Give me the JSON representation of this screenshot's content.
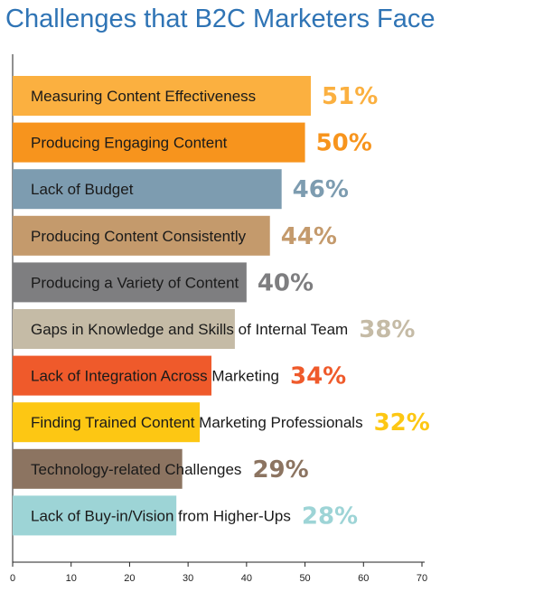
{
  "chart_data": {
    "type": "bar",
    "orientation": "horizontal",
    "title": "Challenges that B2C Marketers Face",
    "categories": [
      "Measuring Content Effectiveness",
      "Producing Engaging Content",
      "Lack of Budget",
      "Producing Content Consistently",
      "Producing a Variety of Content",
      "Gaps in Knowledge and Skills of Internal Team",
      "Lack of Integration Across Marketing",
      "Finding Trained Content Marketing Professionals",
      "Technology-related Challenges",
      "Lack of Buy-in/Vision from Higher-Ups"
    ],
    "values": [
      51,
      50,
      46,
      44,
      40,
      38,
      34,
      32,
      29,
      28
    ],
    "value_labels": [
      "51%",
      "50%",
      "46%",
      "44%",
      "40%",
      "38%",
      "34%",
      "32%",
      "29%",
      "28%"
    ],
    "bar_colors": [
      "#fbb040",
      "#f7941d",
      "#7d9cb0",
      "#c49a6c",
      "#7e7e80",
      "#c5bba6",
      "#ef5a2b",
      "#fdc713",
      "#8c7461",
      "#9dd4d6"
    ],
    "label_colors": [
      "#fbb040",
      "#f7941d",
      "#7d9cb0",
      "#c49a6c",
      "#7e7e80",
      "#c5bba6",
      "#ef5a2b",
      "#fdc713",
      "#8c7461",
      "#9dd4d6"
    ],
    "xlim": [
      0,
      70
    ],
    "xticks": [
      0,
      10,
      20,
      30,
      40,
      50,
      60,
      70
    ],
    "xlabel": "",
    "ylabel": "",
    "grid": false,
    "legend": "none"
  }
}
